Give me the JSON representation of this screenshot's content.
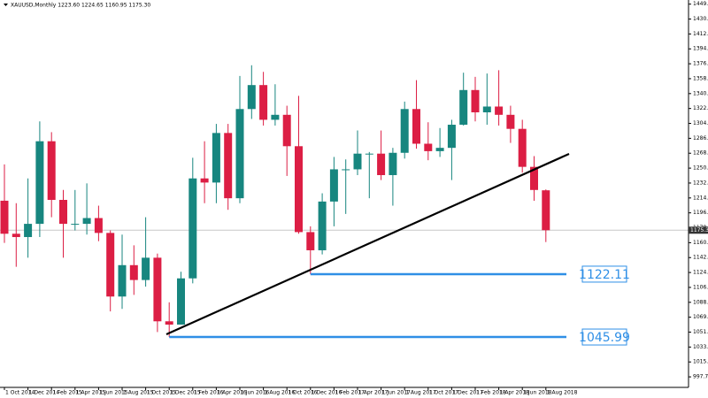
{
  "chart_data": {
    "type": "candlestick",
    "title": "XAUUSD,Monthly  1223.60 1224.65 1160.95 1175.30",
    "categories": [
      "1 Oct 2014",
      null,
      "1 Dec 2014",
      null,
      "1 Feb 2015",
      null,
      "1 Apr 2015",
      null,
      "1 Jun 2015",
      null,
      "1 Aug 2015",
      null,
      "1 Oct 2015",
      null,
      "1 Dec 2015",
      null,
      "1 Feb 2016",
      null,
      "1 Apr 2016",
      null,
      "1 Jun 2016",
      null,
      "1 Aug 2016",
      null,
      "1 Oct 2016",
      null,
      "1 Dec 2016",
      null,
      "1 Feb 2017",
      null,
      "1 Apr 2017",
      null,
      "1 Jun 2017",
      null,
      "1 Aug 2017",
      null,
      "1 Oct 2017",
      null,
      "1 Dec 2017",
      null,
      "1 Feb 2018",
      null,
      "1 Apr 2018",
      null,
      "1 Jun 2018",
      null,
      "1 Aug 2018"
    ],
    "open": [
      1211,
      1171,
      1167,
      1183,
      1283,
      1212,
      1183,
      1183,
      1190,
      1172,
      1095,
      1133,
      1115,
      1142,
      1065,
      1061,
      1117,
      1238,
      1233,
      1293,
      1214,
      1322,
      1351,
      1309,
      1315,
      1277,
      1173,
      1151,
      1210,
      1249,
      1249,
      1268,
      1268,
      1242,
      1269,
      1322,
      1280,
      1271,
      1275,
      1303,
      1345,
      1318,
      1325,
      1315,
      1298,
      1252,
      1223.6
    ],
    "high": [
      1255,
      1208,
      1238,
      1307,
      1294,
      1224,
      1224,
      1232,
      1205,
      1175,
      1170,
      1157,
      1191,
      1147,
      1088,
      1125,
      1263,
      1283,
      1304,
      1304,
      1362,
      1375,
      1367,
      1352,
      1326,
      1338,
      1180,
      1220,
      1264,
      1261,
      1296,
      1270,
      1296,
      1275,
      1331,
      1357,
      1306,
      1299,
      1309,
      1366,
      1361,
      1365,
      1369,
      1326,
      1309,
      1265,
      1224.65
    ],
    "low": [
      1160,
      1131,
      1142,
      1167,
      1191,
      1142,
      1175,
      1170,
      1162,
      1077,
      1080,
      1097,
      1107,
      1052,
      1045.99,
      1062,
      1111,
      1208,
      1208,
      1200,
      1208,
      1310,
      1302,
      1302,
      1241,
      1171,
      1122.11,
      1146,
      1180,
      1195,
      1242,
      1214,
      1236,
      1205,
      1262,
      1274,
      1260,
      1264,
      1236,
      1302,
      1307,
      1303,
      1302,
      1281,
      1245,
      1211,
      1160.95
    ],
    "close": [
      1171,
      1167,
      1183,
      1283,
      1212,
      1183,
      1183,
      1190,
      1172,
      1095,
      1133,
      1115,
      1142,
      1065,
      1061,
      1117,
      1238,
      1233,
      1293,
      1214,
      1322,
      1351,
      1309,
      1315,
      1277,
      1173,
      1151,
      1210,
      1249,
      1249,
      1268,
      1268,
      1242,
      1269,
      1322,
      1280,
      1271,
      1275,
      1303,
      1345,
      1318,
      1325,
      1315,
      1298,
      1252,
      1224,
      1175.3
    ],
    "up_color": "#17867f",
    "down_color": "#dc1e44",
    "ylim": [
      985,
      1454
    ],
    "yticks": [
      {
        "value": 1449,
        "label": "1449.00"
      },
      1430.95,
      {
        "value": 1412.9,
        "label": "1412.90"
      },
      1394.85,
      {
        "value": 1376.8,
        "label": "1376.80"
      },
      1358.75,
      {
        "value": 1340.7,
        "label": "1340.70"
      },
      1322.65,
      {
        "value": 1304.6,
        "label": "1304.60"
      },
      1286.55,
      {
        "value": 1268.5,
        "label": "1268.50"
      },
      1250.45,
      {
        "value": 1232.4,
        "label": "1232.40"
      },
      1214.35,
      {
        "value": 1196.3,
        "label": "1196.30"
      },
      1178.25,
      {
        "value": 1160.2,
        "label": "1160.20"
      },
      1142.15,
      {
        "value": 1124.1,
        "label": "1124.10"
      },
      1106.05,
      {
        "value": 1088,
        "label": "1088.00"
      },
      1069.95,
      {
        "value": 1051.9,
        "label": "1051.90"
      },
      1033.85,
      {
        "value": 1015.8,
        "label": "1015.80"
      },
      997.75
    ],
    "last_price": {
      "value": 1175.3,
      "label": "1175.30"
    },
    "levels": [
      {
        "value": 1122.11,
        "start_index": 26,
        "color": "#2f8fe6"
      },
      {
        "value": 1045.99,
        "start_index": 14,
        "color": "#2f8fe6"
      }
    ]
  }
}
